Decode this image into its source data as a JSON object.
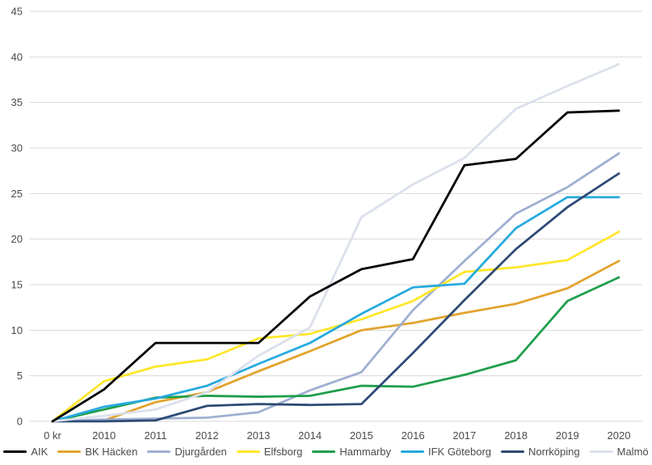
{
  "chart_data": {
    "type": "line",
    "title": "",
    "xlabel": "",
    "ylabel": "",
    "categories": [
      "0 kr",
      "2010",
      "2011",
      "2012",
      "2013",
      "2014",
      "2015",
      "2016",
      "2017",
      "2018",
      "2019",
      "2020"
    ],
    "series": [
      {
        "name": "AIK",
        "color": "#000000",
        "values": [
          0,
          3.5,
          8.6,
          8.6,
          8.6,
          13.7,
          16.7,
          17.8,
          28.1,
          28.8,
          33.9,
          34.1
        ]
      },
      {
        "name": "BK Häcken",
        "color": "#E2A32D",
        "values": [
          0,
          0.1,
          2.1,
          3.2,
          5.5,
          7.7,
          10.0,
          10.8,
          11.9,
          12.9,
          14.6,
          17.6
        ]
      },
      {
        "name": "Djurgården",
        "color": "#9FAFD1",
        "values": [
          0,
          0.2,
          0.3,
          0.4,
          1.0,
          3.4,
          5.4,
          12.2,
          17.6,
          22.8,
          25.7,
          29.4
        ]
      },
      {
        "name": "Elfsborg",
        "color": "#FFE629",
        "values": [
          0,
          4.4,
          6.0,
          6.8,
          9.1,
          9.6,
          11.2,
          13.2,
          16.4,
          16.9,
          17.7,
          20.8
        ]
      },
      {
        "name": "Hammarby",
        "color": "#1F9E4B",
        "values": [
          0,
          1.3,
          2.6,
          2.8,
          2.7,
          2.8,
          3.9,
          3.8,
          5.1,
          6.7,
          13.2,
          15.8
        ]
      },
      {
        "name": "IFK Göteborg",
        "color": "#27AADF",
        "values": [
          0,
          1.6,
          2.5,
          3.9,
          6.3,
          8.6,
          11.8,
          14.7,
          15.1,
          21.2,
          24.6,
          24.6
        ]
      },
      {
        "name": "Norrköping",
        "color": "#2D4A74",
        "values": [
          0,
          0.0,
          0.1,
          1.7,
          1.9,
          1.8,
          1.9,
          7.5,
          13.3,
          18.9,
          23.5,
          27.2
        ]
      },
      {
        "name": "Malmö",
        "color": "#DBE0EC",
        "values": [
          0,
          0.6,
          1.3,
          3.2,
          7.2,
          10.3,
          22.4,
          26.0,
          28.9,
          34.3,
          36.8,
          39.2
        ]
      }
    ],
    "ylim": [
      0,
      45
    ],
    "y_ticks": [
      0,
      5,
      10,
      15,
      20,
      25,
      30,
      35,
      40,
      45
    ],
    "grid": "horizontal",
    "legend_position": "bottom",
    "gridline_color": "#d9d9d9",
    "text_color": "#4a4a4a",
    "background": "#ffffff"
  }
}
